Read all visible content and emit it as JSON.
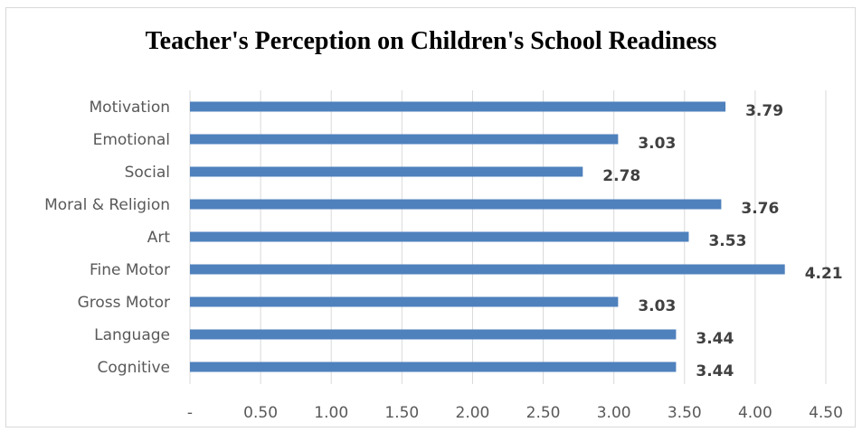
{
  "chart_data": {
    "type": "bar",
    "orientation": "horizontal",
    "title": "Teacher's Perception on Children's School Readiness",
    "categories": [
      "Motivation",
      "Emotional",
      "Social",
      "Moral & Religion",
      "Art",
      "Fine Motor",
      "Gross Motor",
      "Language",
      "Cognitive"
    ],
    "values": [
      3.79,
      3.03,
      2.78,
      3.76,
      3.53,
      4.21,
      3.03,
      3.44,
      3.44
    ],
    "data_labels": [
      "3.79",
      "3.03",
      "2.78",
      "3.76",
      "3.53",
      "4.21",
      "3.03",
      "3.44",
      "3.44"
    ],
    "xlim": [
      0,
      4.5
    ],
    "x_ticks": [
      0,
      0.5,
      1.0,
      1.5,
      2.0,
      2.5,
      3.0,
      3.5,
      4.0,
      4.5
    ],
    "x_tick_labels": [
      "-",
      "0.50",
      "1.00",
      "1.50",
      "2.00",
      "2.50",
      "3.00",
      "3.50",
      "4.00",
      "4.50"
    ],
    "xlabel": "",
    "ylabel": "",
    "grid": "vertical",
    "legend": "none",
    "colors": {
      "bar": "#4f81bd",
      "grid": "#d9d9d9",
      "axis_text": "#595959",
      "data_label": "#404040"
    }
  }
}
